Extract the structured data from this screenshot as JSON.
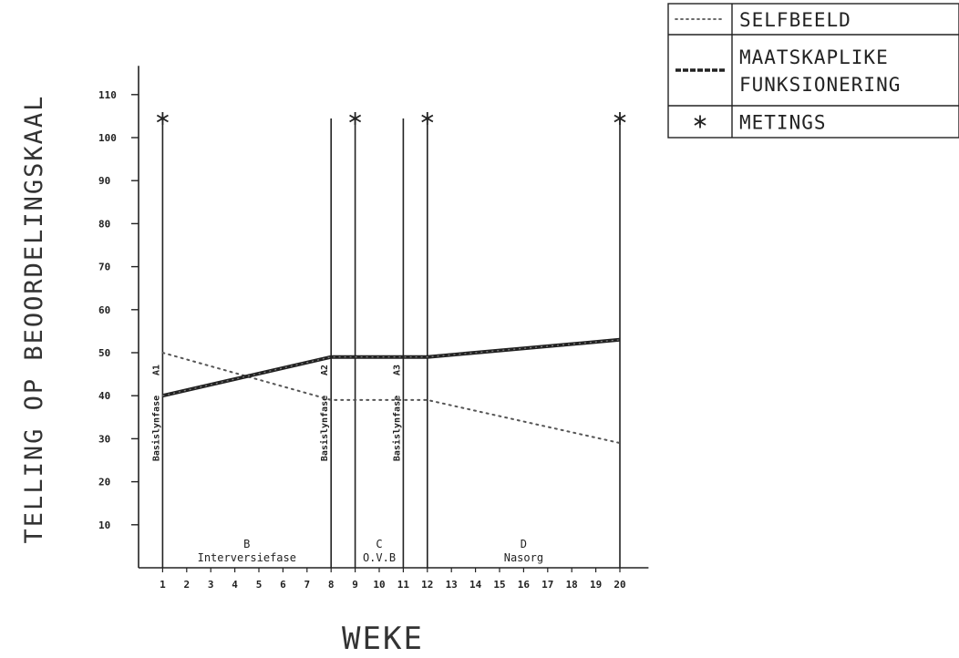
{
  "chart_data": {
    "type": "line",
    "title": "",
    "xlabel": "WEKE",
    "ylabel": "TELLING OP BEOORDELINGSKAAL",
    "x": [
      1,
      2,
      3,
      4,
      5,
      6,
      7,
      8,
      9,
      10,
      11,
      12,
      13,
      14,
      15,
      16,
      17,
      18,
      19,
      20
    ],
    "x_tick_labels": [
      "1",
      "2",
      "3",
      "4",
      "5",
      "6",
      "7",
      "8",
      "9",
      "10",
      "11",
      "12",
      "13",
      "14",
      "15",
      "16",
      "17",
      "18",
      "19",
      "20"
    ],
    "y_ticks": [
      10,
      20,
      30,
      40,
      50,
      60,
      70,
      80,
      90,
      100,
      110
    ],
    "y_tick_labels": [
      "10",
      "20",
      "30",
      "40",
      "50",
      "60",
      "70",
      "80",
      "90",
      "100",
      "110"
    ],
    "xlim": [
      0,
      21
    ],
    "ylim": [
      0,
      115
    ],
    "series": [
      {
        "name": "SELFBEELD",
        "style": "dotted",
        "color": "#555555",
        "points": [
          [
            1,
            50
          ],
          [
            8,
            39
          ],
          [
            12,
            39
          ],
          [
            20,
            29
          ]
        ]
      },
      {
        "name": "MAATSKAPLIKE FUNKSIONERING",
        "style": "thick-dashed",
        "color": "#222222",
        "points": [
          [
            1,
            40
          ],
          [
            8,
            49
          ],
          [
            12,
            49
          ],
          [
            20,
            53
          ]
        ]
      }
    ],
    "metings_weeks": [
      1,
      9,
      12,
      20
    ],
    "phase_boundaries": [
      1,
      8,
      11,
      12,
      20
    ],
    "phases": [
      {
        "letter": "B",
        "name": "Interversiefase",
        "center": 4.5
      },
      {
        "letter": "C",
        "name": "O.V.B",
        "center": 10
      },
      {
        "letter": "D",
        "name": "Nasorg",
        "center": 16
      }
    ],
    "vertical_labels": [
      {
        "text": "Basislynfase",
        "sub": "A1",
        "week": 1
      },
      {
        "text": "Basislynfase",
        "sub": "A2",
        "week": 8
      },
      {
        "text": "Basislynfase",
        "sub": "A3",
        "week": 11
      }
    ],
    "legend": {
      "placement": "top-right",
      "entries": [
        {
          "label_lines": [
            "SELFBEELD"
          ],
          "symbol": "dotted-line"
        },
        {
          "label_lines": [
            "MAATSKAPLIKE",
            "FUNKSIONERING"
          ],
          "symbol": "thick-dashed-line"
        },
        {
          "label_lines": [
            "METINGS"
          ],
          "symbol": "asterisk"
        }
      ]
    },
    "grid": false
  }
}
